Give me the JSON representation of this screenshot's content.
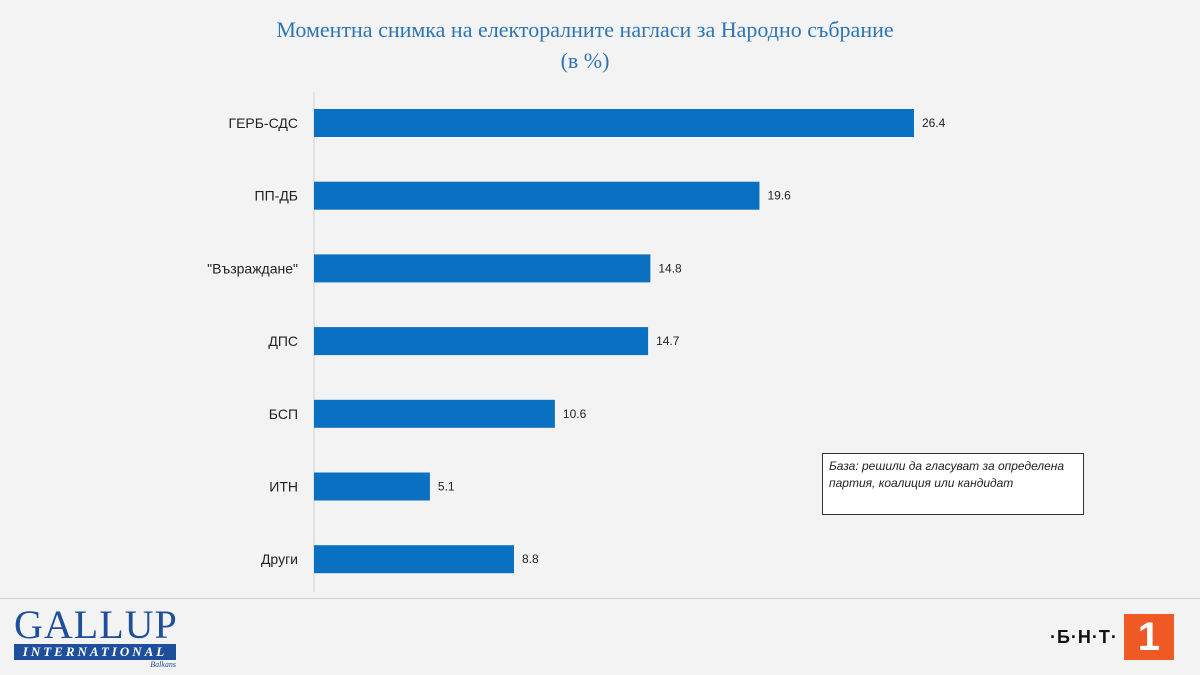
{
  "title": {
    "line1": "Моментна снимка на електоралните нагласи за Народно събрание",
    "line2": "(в %)"
  },
  "note": {
    "text": "База: решили да гласуват за определена партия, коалиция или кандидат"
  },
  "logos": {
    "gallup_word": "GALLUP",
    "gallup_bar": "INTERNATIONAL",
    "gallup_sub": "Balkans",
    "bnt_text": "·Б·Н·Т·",
    "bnt_number": "1"
  },
  "colors": {
    "bar": "#0a70c2",
    "title": "#2e75b6",
    "bnt_accent": "#ef5a24",
    "gallup_blue": "#1f4e9a"
  },
  "chart_data": {
    "type": "bar",
    "orientation": "horizontal",
    "categories": [
      "ГЕРБ-СДС",
      "ПП-ДБ",
      "\"Възраждане\"",
      "ДПС",
      "БСП",
      "ИТН",
      "Други"
    ],
    "values": [
      26.4,
      19.6,
      14.8,
      14.7,
      10.6,
      5.1,
      8.8
    ],
    "data_labels": [
      "26.4",
      "19.6",
      "14.8",
      "14.7",
      "10.6",
      "5.1",
      "8.8"
    ],
    "xlim": [
      0,
      30
    ],
    "grid": false,
    "legend": "none"
  }
}
